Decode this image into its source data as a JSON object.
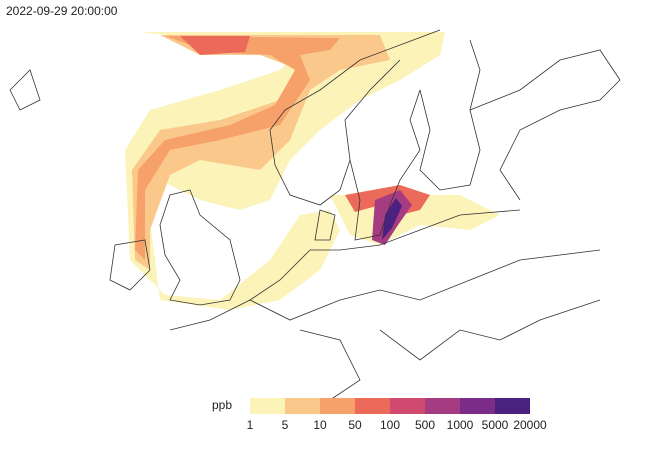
{
  "timestamp": "2022-09-29 20:00:00",
  "legend": {
    "label": "ppb",
    "ticks": [
      1,
      5,
      10,
      50,
      100,
      500,
      1000,
      5000,
      20000
    ],
    "colors": [
      "#fbf3b8",
      "#fbc88c",
      "#f6a06a",
      "#ec6a5a",
      "#cf4a6e",
      "#a53b80",
      "#7a2c88",
      "#4b2180"
    ]
  }
}
